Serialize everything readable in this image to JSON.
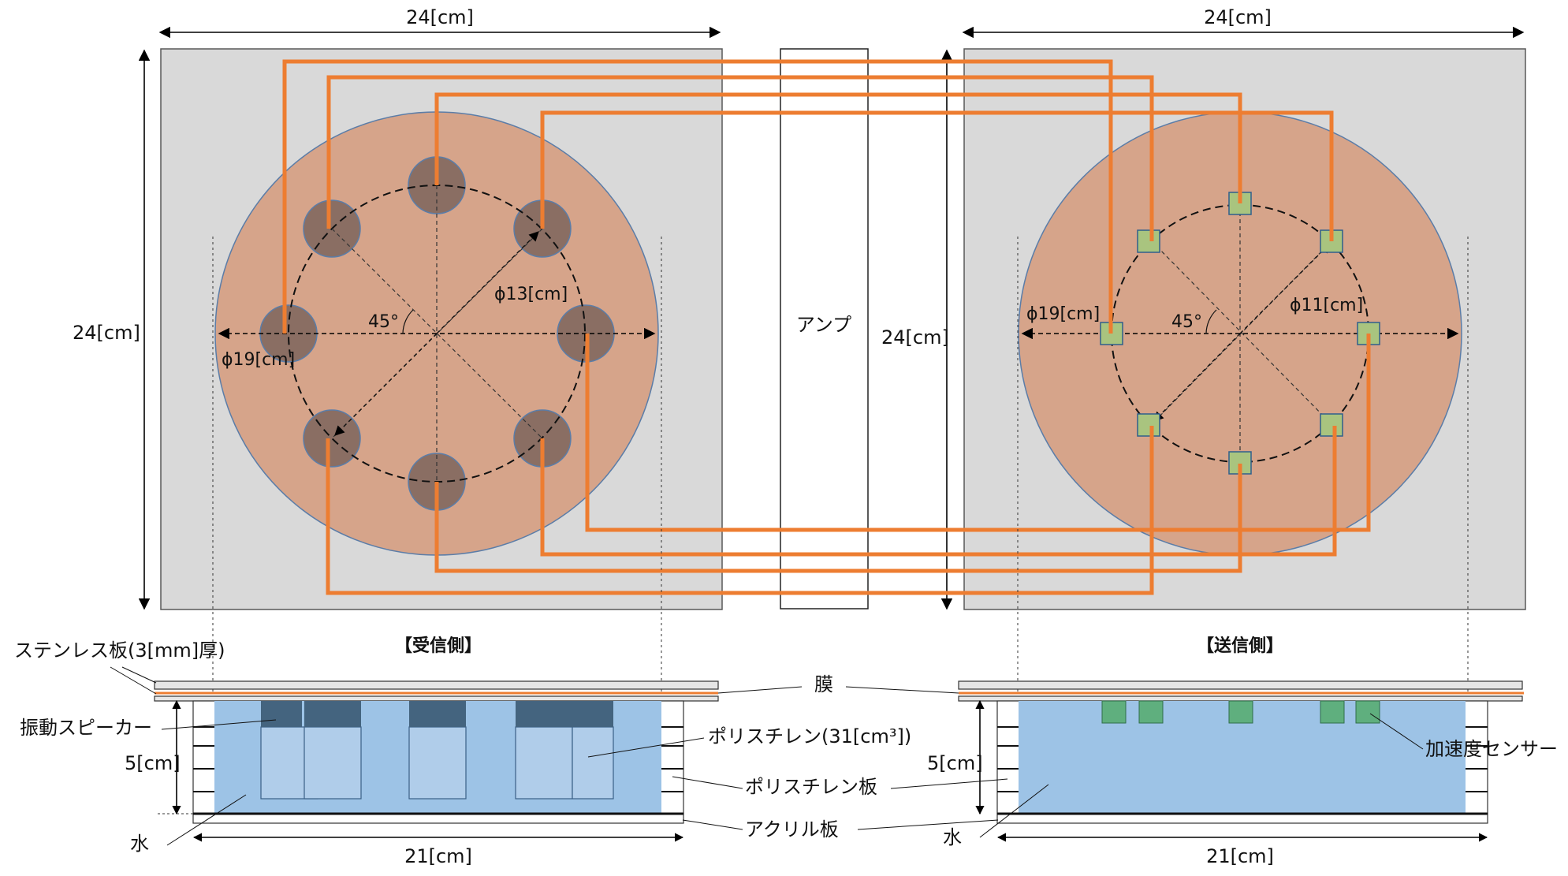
{
  "labels": {
    "top_left_width": "24[cm]",
    "top_right_width": "24[cm]",
    "left_height": "24[cm]",
    "right_height": "24[cm]",
    "amp": "アンプ",
    "receive_outer_dia": "ϕ19[cm]",
    "receive_inner_dia": "ϕ13[cm]",
    "receive_angle": "45°",
    "send_outer_dia": "ϕ19[cm]",
    "send_inner_dia": "ϕ11[cm]",
    "send_angle": "45°",
    "receive_side": "【受信側】",
    "send_side": "【送信側】",
    "stainless_plate": "ステンレス板(3[mm]厚)",
    "membrane": "膜",
    "vibration_speaker": "振動スピーカー",
    "polystyrene_volume": "ポリスチレン(31[cm³])",
    "polystyrene_plate": "ポリスチレン板",
    "acrylic_plate": "アクリル板",
    "water_left": "水",
    "water_right": "水",
    "depth_left": "5[cm]",
    "depth_right": "5[cm]",
    "base_left": "21[cm]",
    "base_right": "21[cm]",
    "accelerometer": "加速度センサー"
  },
  "colors": {
    "plate": "#D9D9D9",
    "disc": "#D6A48A",
    "disc_edge": "#5B7DA8",
    "speaker": "#8A6E63",
    "sensor": "#A9C47F",
    "sensor_edge": "#2F5E8C",
    "wire": "#ED7D31",
    "water": "#9DC3E6",
    "speaker_block": "#B0CDEA",
    "speaker_head": "#44647F",
    "sensor_block": "#5FAF7E"
  }
}
